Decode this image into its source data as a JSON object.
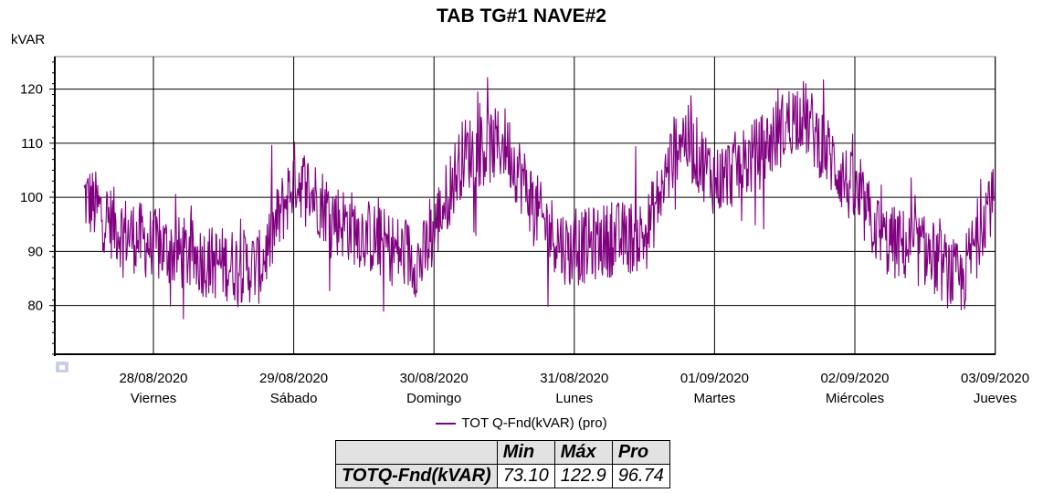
{
  "chart_data": {
    "type": "line",
    "title": "TAB TG#1 NAVE#2",
    "ylabel": "kVAR",
    "ylim": [
      71,
      126
    ],
    "yticks": [
      80,
      90,
      100,
      110,
      120
    ],
    "x_ticks": [
      {
        "date": "28/08/2020",
        "day": "Viernes"
      },
      {
        "date": "29/08/2020",
        "day": "Sábado"
      },
      {
        "date": "30/08/2020",
        "day": "Domingo"
      },
      {
        "date": "31/08/2020",
        "day": "Lunes"
      },
      {
        "date": "01/09/2020",
        "day": "Martes"
      },
      {
        "date": "02/09/2020",
        "day": "Miércoles"
      },
      {
        "date": "03/09/2020",
        "day": "Jueves"
      }
    ],
    "x_start_day": "27/08/2020 05:00",
    "series": [
      {
        "name": "TOT Q-Fnd(kVAR) (pro)",
        "color": "#800080",
        "profile_days_from_start": [
          0.0,
          0.3,
          0.55,
          0.8,
          1.2,
          1.55,
          1.8,
          2.1,
          2.45,
          2.7,
          3.0,
          3.3,
          3.55,
          3.75,
          4.0,
          4.3,
          4.55,
          4.8,
          5.1,
          5.4,
          5.7,
          6.0,
          6.3,
          6.55,
          6.75,
          7.0,
          7.2,
          7.3
        ],
        "profile_values": [
          98,
          100,
          94,
          91,
          88,
          87,
          104,
          96,
          91,
          88,
          108,
          110,
          96,
          90,
          92,
          93,
          112,
          103,
          108,
          116,
          104,
          92,
          90,
          84,
          100,
          86,
          90,
          88
        ],
        "min": 73.1,
        "max": 122.9
      }
    ],
    "legend": "TOT Q-Fnd(kVAR) (pro)",
    "grid": true
  },
  "stats_table": {
    "headers": [
      "Min",
      "Máx",
      "Pro"
    ],
    "row_label": "TOTQ-Fnd(kVAR)",
    "values": [
      "73.10",
      "122.9",
      "96.74"
    ]
  }
}
